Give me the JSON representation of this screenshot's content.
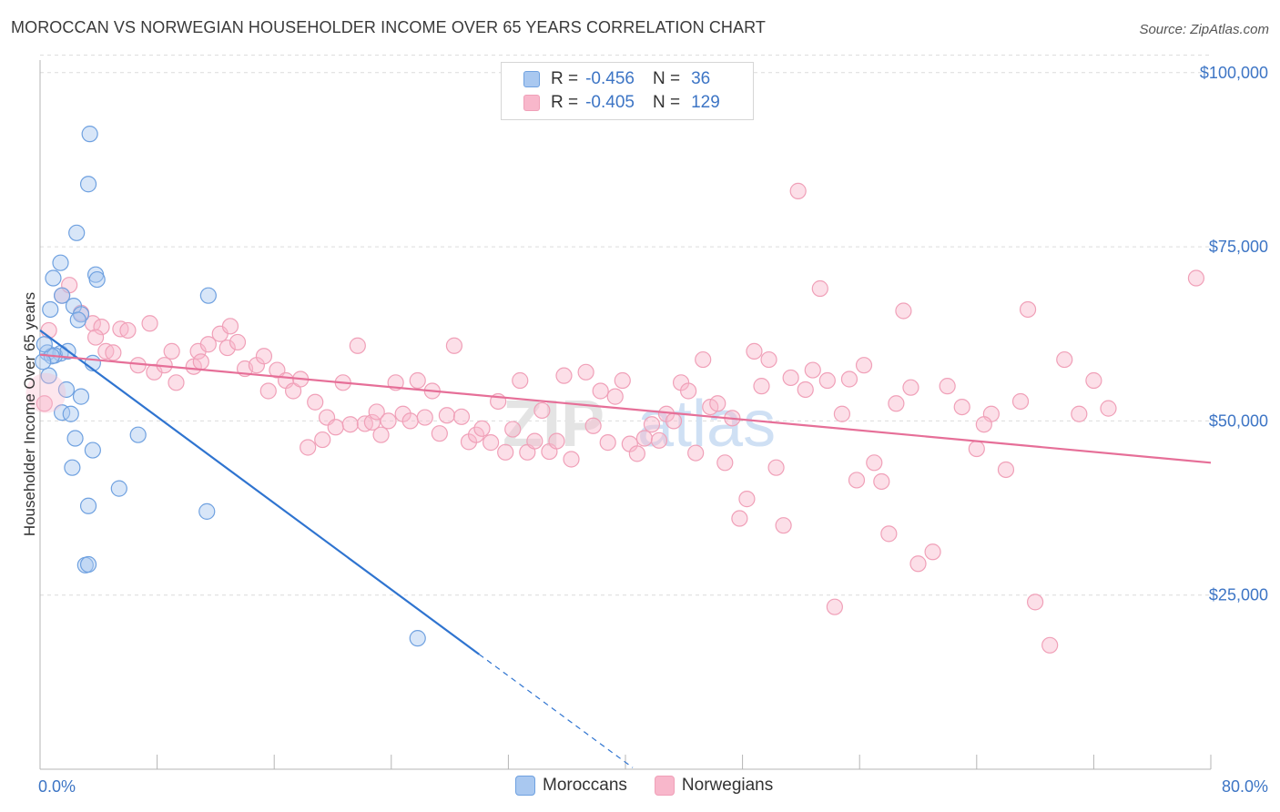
{
  "header": {
    "title": "MOROCCAN VS NORWEGIAN HOUSEHOLDER INCOME OVER 65 YEARS CORRELATION CHART",
    "source": "Source: ZipAtlas.com"
  },
  "watermark": "ZIPatlas",
  "legend": {
    "rows": [
      {
        "r_label": "R =",
        "r_value": "-0.456",
        "n_label": "N =",
        "n_value": "36",
        "color": "#a9c8f0"
      },
      {
        "r_label": "R =",
        "r_value": "-0.405",
        "n_label": "N =",
        "n_value": "129",
        "color": "#f8b7cb"
      }
    ]
  },
  "bottom_legend": [
    {
      "label": "Moroccans",
      "color": "#a9c8f0"
    },
    {
      "label": "Norwegians",
      "color": "#f8b7cb"
    }
  ],
  "chart_data": {
    "type": "scatter",
    "title": "MOROCCAN VS NORWEGIAN HOUSEHOLDER INCOME OVER 65 YEARS CORRELATION CHART",
    "ylabel": "Householder Income Over 65 years",
    "xlabel": "",
    "xlim": [
      0,
      80
    ],
    "ylim": [
      0,
      105000
    ],
    "x_tick_labels": [
      "0.0%",
      "80.0%"
    ],
    "y_ticks": [
      {
        "value": 25000,
        "label": "$25,000"
      },
      {
        "value": 50000,
        "label": "$50,000"
      },
      {
        "value": 75000,
        "label": "$75,000"
      },
      {
        "value": 100000,
        "label": "$100,000"
      }
    ],
    "grid": true,
    "legend_position": "top-center",
    "series": [
      {
        "name": "Moroccans",
        "color": "#6fa1e0",
        "fill": "#a9c8f0",
        "trend_color": "#2f74d0",
        "trend": {
          "x0": 0.0,
          "y0": 63000,
          "x1": 30.0,
          "y1": 16500,
          "x_dash_end": 40.5
        },
        "points": [
          [
            3.4,
            91200
          ],
          [
            3.3,
            84000
          ],
          [
            2.5,
            77000
          ],
          [
            1.4,
            72700
          ],
          [
            0.9,
            70500
          ],
          [
            3.8,
            71000
          ],
          [
            3.9,
            70300
          ],
          [
            1.5,
            68000
          ],
          [
            11.5,
            68000
          ],
          [
            2.3,
            66500
          ],
          [
            0.7,
            66000
          ],
          [
            2.8,
            65300
          ],
          [
            2.6,
            64500
          ],
          [
            0.5,
            59800
          ],
          [
            1.4,
            59700
          ],
          [
            1.0,
            59400
          ],
          [
            0.8,
            59300
          ],
          [
            3.6,
            58300
          ],
          [
            0.6,
            56500
          ],
          [
            1.8,
            54500
          ],
          [
            2.8,
            53500
          ],
          [
            1.5,
            51200
          ],
          [
            2.1,
            51000
          ],
          [
            2.4,
            47500
          ],
          [
            6.7,
            48000
          ],
          [
            3.6,
            45800
          ],
          [
            2.2,
            43300
          ],
          [
            5.4,
            40300
          ],
          [
            3.3,
            37800
          ],
          [
            11.4,
            37000
          ],
          [
            3.1,
            29300
          ],
          [
            3.3,
            29400
          ],
          [
            25.8,
            18800
          ],
          [
            0.3,
            61000
          ],
          [
            0.2,
            58500
          ],
          [
            1.9,
            60000
          ]
        ]
      },
      {
        "name": "Norwegians",
        "color": "#f0a0b8",
        "fill": "#f8b7cb",
        "trend_color": "#e66f98",
        "trend": {
          "x0": 0.0,
          "y0": 59500,
          "x1": 80.0,
          "y1": 44000
        },
        "points": [
          [
            0.3,
            52500
          ],
          [
            0.6,
            63000
          ],
          [
            1.5,
            68000
          ],
          [
            2.0,
            69500
          ],
          [
            2.8,
            65500
          ],
          [
            3.6,
            64000
          ],
          [
            4.2,
            63500
          ],
          [
            3.8,
            62000
          ],
          [
            4.5,
            60000
          ],
          [
            5.5,
            63200
          ],
          [
            6.0,
            63000
          ],
          [
            7.5,
            64000
          ],
          [
            5.0,
            59800
          ],
          [
            6.7,
            58000
          ],
          [
            7.8,
            57000
          ],
          [
            8.5,
            58000
          ],
          [
            9.0,
            60000
          ],
          [
            9.3,
            55500
          ],
          [
            10.5,
            57800
          ],
          [
            10.8,
            60000
          ],
          [
            11.5,
            61000
          ],
          [
            11.0,
            58500
          ],
          [
            12.3,
            62500
          ],
          [
            12.8,
            60500
          ],
          [
            13.0,
            63600
          ],
          [
            13.5,
            61300
          ],
          [
            14.0,
            57500
          ],
          [
            14.8,
            58000
          ],
          [
            15.3,
            59300
          ],
          [
            15.6,
            54300
          ],
          [
            16.2,
            57300
          ],
          [
            16.8,
            55800
          ],
          [
            17.3,
            54300
          ],
          [
            17.8,
            56000
          ],
          [
            18.3,
            46200
          ],
          [
            18.8,
            52700
          ],
          [
            19.3,
            47300
          ],
          [
            19.6,
            50500
          ],
          [
            20.2,
            49100
          ],
          [
            20.7,
            55500
          ],
          [
            21.2,
            49500
          ],
          [
            21.7,
            60800
          ],
          [
            22.2,
            49600
          ],
          [
            22.7,
            49800
          ],
          [
            23.0,
            51300
          ],
          [
            23.3,
            48000
          ],
          [
            23.8,
            50000
          ],
          [
            24.3,
            55500
          ],
          [
            24.8,
            51000
          ],
          [
            25.3,
            50000
          ],
          [
            25.8,
            55800
          ],
          [
            26.3,
            50500
          ],
          [
            26.8,
            54300
          ],
          [
            27.3,
            48200
          ],
          [
            27.8,
            50800
          ],
          [
            28.3,
            60800
          ],
          [
            28.8,
            50600
          ],
          [
            29.3,
            47000
          ],
          [
            29.8,
            48000
          ],
          [
            30.2,
            48900
          ],
          [
            30.8,
            46900
          ],
          [
            31.3,
            52800
          ],
          [
            31.8,
            45500
          ],
          [
            32.3,
            48800
          ],
          [
            32.8,
            55800
          ],
          [
            33.3,
            45500
          ],
          [
            33.8,
            47100
          ],
          [
            34.3,
            51500
          ],
          [
            34.8,
            45600
          ],
          [
            35.3,
            47100
          ],
          [
            35.8,
            56500
          ],
          [
            36.3,
            44500
          ],
          [
            37.3,
            57000
          ],
          [
            37.8,
            49300
          ],
          [
            38.3,
            54300
          ],
          [
            38.8,
            46900
          ],
          [
            39.3,
            53500
          ],
          [
            39.8,
            55800
          ],
          [
            40.3,
            46700
          ],
          [
            40.8,
            45300
          ],
          [
            41.3,
            47500
          ],
          [
            41.8,
            49500
          ],
          [
            42.3,
            47200
          ],
          [
            42.8,
            51000
          ],
          [
            43.3,
            50000
          ],
          [
            43.8,
            55500
          ],
          [
            44.3,
            54300
          ],
          [
            44.8,
            45400
          ],
          [
            45.3,
            58800
          ],
          [
            45.8,
            52000
          ],
          [
            46.3,
            52500
          ],
          [
            46.8,
            44000
          ],
          [
            47.3,
            50400
          ],
          [
            47.8,
            36000
          ],
          [
            48.3,
            38800
          ],
          [
            48.8,
            60000
          ],
          [
            49.3,
            55000
          ],
          [
            49.8,
            58800
          ],
          [
            50.3,
            43300
          ],
          [
            50.8,
            35000
          ],
          [
            51.3,
            56200
          ],
          [
            51.8,
            83000
          ],
          [
            52.3,
            54500
          ],
          [
            52.8,
            57300
          ],
          [
            53.3,
            69000
          ],
          [
            53.8,
            55800
          ],
          [
            54.3,
            23300
          ],
          [
            54.8,
            51000
          ],
          [
            55.3,
            56000
          ],
          [
            55.8,
            41500
          ],
          [
            56.3,
            58000
          ],
          [
            57.5,
            41300
          ],
          [
            58.0,
            33800
          ],
          [
            58.5,
            52500
          ],
          [
            59.0,
            65800
          ],
          [
            59.5,
            54800
          ],
          [
            60.0,
            29500
          ],
          [
            61.0,
            31200
          ],
          [
            62.0,
            55000
          ],
          [
            63.0,
            52000
          ],
          [
            64.0,
            46000
          ],
          [
            65.0,
            51000
          ],
          [
            66.0,
            43000
          ],
          [
            67.0,
            52800
          ],
          [
            67.5,
            66000
          ],
          [
            68.0,
            24000
          ],
          [
            69.0,
            17800
          ],
          [
            70.0,
            58800
          ],
          [
            71.0,
            51000
          ],
          [
            72.0,
            55800
          ],
          [
            73.0,
            51800
          ],
          [
            79.0,
            70500
          ],
          [
            64.5,
            49500
          ],
          [
            57.0,
            44000
          ]
        ]
      }
    ]
  }
}
